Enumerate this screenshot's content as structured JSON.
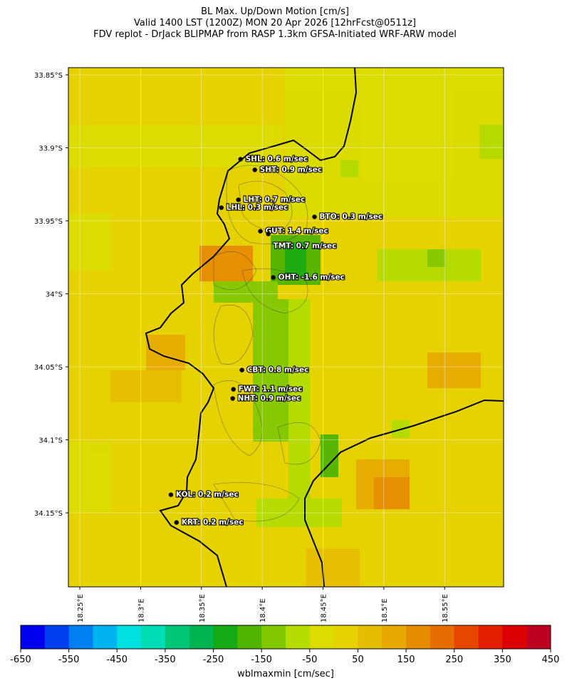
{
  "header": {
    "title_lines": [
      "BL Max. Up/Down Motion [cm/s]",
      "Valid 1400 LST (1200Z) MON 20 Apr 2026 [12hrFcst@0511z]",
      "FDV replot - DrJack BLIPMAP from RASP 1.3km GFSA-Initiated WRF-ARW model"
    ]
  },
  "map": {
    "latlim": [
      -34.2007,
      -33.8451
    ],
    "lonlim": [
      18.2406,
      18.5985
    ],
    "lat_ticks": [
      {
        "value": -33.85,
        "label": "33.85°S"
      },
      {
        "value": -33.9,
        "label": "33.9°S"
      },
      {
        "value": -33.95,
        "label": "33.95°S"
      },
      {
        "value": -34,
        "label": "34°S"
      },
      {
        "value": -34.05,
        "label": "34.05°S"
      },
      {
        "value": -34.1,
        "label": "34.1°S"
      },
      {
        "value": -34.15,
        "label": "34.15°S"
      }
    ],
    "lon_ticks": [
      {
        "value": 18.25,
        "label": "18.25°E"
      },
      {
        "value": 18.3,
        "label": "18.3°E"
      },
      {
        "value": 18.35,
        "label": "18.35°E"
      },
      {
        "value": 18.4,
        "label": "18.4°E"
      },
      {
        "value": 18.45,
        "label": "18.45°E"
      },
      {
        "value": 18.5,
        "label": "18.5°E"
      },
      {
        "value": 18.55,
        "label": "18.55°E"
      }
    ],
    "stations": [
      {
        "label": "SHL: 0.6 m/sec",
        "lon": 18.3822,
        "lat": -33.9078
      },
      {
        "label": "SHT: 0.9 m/sec",
        "lon": 18.3939,
        "lat": -33.9151
      },
      {
        "label": "LHT: 0.7 m/sec",
        "lon": 18.3804,
        "lat": -33.9356
      },
      {
        "label": "LHL: 0.3 m/sec",
        "lon": 18.3664,
        "lat": -33.941
      },
      {
        "label": "BTO: 0.3 m/sec",
        "lon": 18.443,
        "lat": -33.9473
      },
      {
        "label": "GUT: 1.4 m/sec",
        "lon": 18.3985,
        "lat": -33.9571
      },
      {
        "label": "TMT: 0.7 m/sec",
        "lon": 18.405,
        "lat": -33.959
      },
      {
        "label": "OHT: -1.6 m/sec",
        "lon": 18.4091,
        "lat": -33.9888
      },
      {
        "label": "CBT: 0.8 m/sec",
        "lon": 18.3833,
        "lat": -34.0522
      },
      {
        "label": "FWT: 1.1 m/sec",
        "lon": 18.3763,
        "lat": -34.0654
      },
      {
        "label": "NHT: 0.9 m/sec",
        "lon": 18.3757,
        "lat": -34.0717
      },
      {
        "label": "KOL: 0.2 m/sec",
        "lon": 18.3249,
        "lat": -34.1376
      },
      {
        "label": "KRT: 0.2 m/sec",
        "lon": 18.3295,
        "lat": -34.1566
      }
    ]
  },
  "colorbar": {
    "lim": [
      -650,
      450
    ],
    "ticks": [
      -650,
      -550,
      -450,
      -350,
      -250,
      -150,
      -50,
      50,
      150,
      250,
      350,
      450
    ],
    "label": "wblmaxmin [cm/sec]",
    "colors": [
      "#0000f0",
      "#0040f0",
      "#0080f0",
      "#00b4f0",
      "#00e0e0",
      "#00dcb4",
      "#00c878",
      "#00b450",
      "#14aa14",
      "#50b400",
      "#82c800",
      "#b4dc00",
      "#dcdc00",
      "#e6d200",
      "#e6be00",
      "#e6aa00",
      "#e68c00",
      "#e66e00",
      "#e64600",
      "#e61e00",
      "#dc0000",
      "#c00020"
    ]
  }
}
